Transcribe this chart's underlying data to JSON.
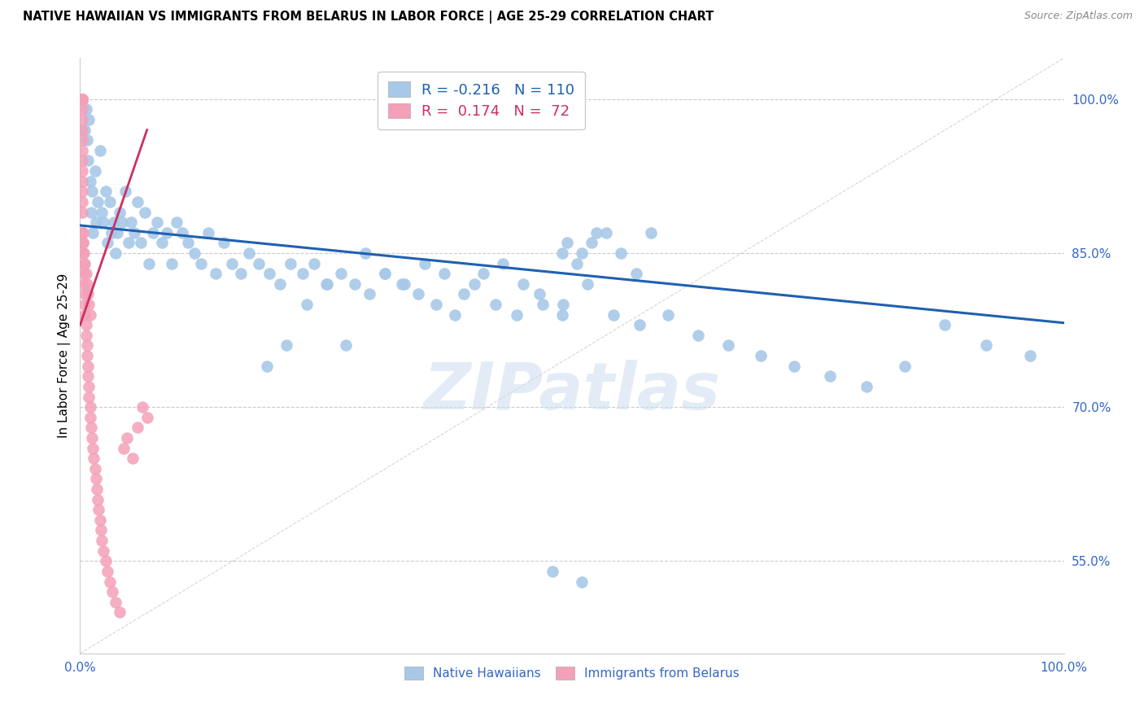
{
  "title": "NATIVE HAWAIIAN VS IMMIGRANTS FROM BELARUS IN LABOR FORCE | AGE 25-29 CORRELATION CHART",
  "source": "Source: ZipAtlas.com",
  "ylabel": "In Labor Force | Age 25-29",
  "xlim": [
    0.0,
    1.0
  ],
  "ylim": [
    0.46,
    1.04
  ],
  "right_yticks": [
    1.0,
    0.85,
    0.7,
    0.55
  ],
  "right_yticklabels": [
    "100.0%",
    "85.0%",
    "70.0%",
    "55.0%"
  ],
  "blue_color": "#a8c8e8",
  "blue_edge_color": "#7aaed4",
  "blue_line_color": "#2060b0",
  "pink_color": "#f4a0b8",
  "pink_edge_color": "#e07090",
  "pink_line_color": "#cc3060",
  "legend_r_blue": "-0.216",
  "legend_n_blue": "110",
  "legend_r_pink": "0.174",
  "legend_n_pink": "72",
  "watermark_text": "ZIPatlas",
  "blue_line_x0": 0.0,
  "blue_line_x1": 1.0,
  "blue_line_y0": 0.877,
  "blue_line_y1": 0.782,
  "pink_line_x0": 0.0,
  "pink_line_x1": 0.068,
  "pink_line_y0": 0.78,
  "pink_line_y1": 0.97,
  "blue_scatter_x": [
    0.005,
    0.006,
    0.007,
    0.008,
    0.009,
    0.01,
    0.011,
    0.012,
    0.013,
    0.015,
    0.016,
    0.018,
    0.02,
    0.022,
    0.024,
    0.026,
    0.028,
    0.03,
    0.032,
    0.034,
    0.036,
    0.038,
    0.04,
    0.043,
    0.046,
    0.049,
    0.052,
    0.055,
    0.058,
    0.062,
    0.066,
    0.07,
    0.074,
    0.078,
    0.083,
    0.088,
    0.093,
    0.098,
    0.104,
    0.11,
    0.116,
    0.123,
    0.13,
    0.138,
    0.146,
    0.154,
    0.163,
    0.172,
    0.182,
    0.192,
    0.203,
    0.214,
    0.226,
    0.238,
    0.251,
    0.265,
    0.279,
    0.294,
    0.31,
    0.327,
    0.344,
    0.362,
    0.381,
    0.401,
    0.422,
    0.444,
    0.467,
    0.491,
    0.516,
    0.542,
    0.569,
    0.598,
    0.628,
    0.659,
    0.692,
    0.726,
    0.762,
    0.799,
    0.838,
    0.879,
    0.921,
    0.966,
    0.19,
    0.21,
    0.23,
    0.25,
    0.27,
    0.29,
    0.31,
    0.33,
    0.35,
    0.37,
    0.39,
    0.41,
    0.43,
    0.45,
    0.47,
    0.49,
    0.51,
    0.49,
    0.505,
    0.52,
    0.535,
    0.55,
    0.565,
    0.58,
    0.48,
    0.495,
    0.51,
    0.525
  ],
  "blue_scatter_y": [
    0.97,
    0.99,
    0.96,
    0.94,
    0.98,
    0.92,
    0.89,
    0.91,
    0.87,
    0.93,
    0.88,
    0.9,
    0.95,
    0.89,
    0.88,
    0.91,
    0.86,
    0.9,
    0.87,
    0.88,
    0.85,
    0.87,
    0.89,
    0.88,
    0.91,
    0.86,
    0.88,
    0.87,
    0.9,
    0.86,
    0.89,
    0.84,
    0.87,
    0.88,
    0.86,
    0.87,
    0.84,
    0.88,
    0.87,
    0.86,
    0.85,
    0.84,
    0.87,
    0.83,
    0.86,
    0.84,
    0.83,
    0.85,
    0.84,
    0.83,
    0.82,
    0.84,
    0.83,
    0.84,
    0.82,
    0.83,
    0.82,
    0.81,
    0.83,
    0.82,
    0.81,
    0.8,
    0.79,
    0.82,
    0.8,
    0.79,
    0.81,
    0.8,
    0.82,
    0.79,
    0.78,
    0.79,
    0.77,
    0.76,
    0.75,
    0.74,
    0.73,
    0.72,
    0.74,
    0.78,
    0.76,
    0.75,
    0.74,
    0.76,
    0.8,
    0.82,
    0.76,
    0.85,
    0.83,
    0.82,
    0.84,
    0.83,
    0.81,
    0.83,
    0.84,
    0.82,
    0.8,
    0.79,
    0.53,
    0.85,
    0.84,
    0.86,
    0.87,
    0.85,
    0.83,
    0.87,
    0.54,
    0.86,
    0.85,
    0.87
  ],
  "pink_scatter_x": [
    0.002,
    0.002,
    0.002,
    0.002,
    0.002,
    0.002,
    0.002,
    0.002,
    0.002,
    0.002,
    0.002,
    0.002,
    0.002,
    0.002,
    0.002,
    0.002,
    0.002,
    0.002,
    0.002,
    0.002,
    0.003,
    0.003,
    0.003,
    0.004,
    0.004,
    0.004,
    0.005,
    0.005,
    0.005,
    0.006,
    0.006,
    0.007,
    0.007,
    0.008,
    0.008,
    0.009,
    0.009,
    0.01,
    0.01,
    0.011,
    0.012,
    0.013,
    0.014,
    0.015,
    0.016,
    0.017,
    0.018,
    0.019,
    0.02,
    0.021,
    0.022,
    0.024,
    0.026,
    0.028,
    0.03,
    0.033,
    0.036,
    0.04,
    0.044,
    0.048,
    0.053,
    0.058,
    0.063,
    0.068,
    0.003,
    0.004,
    0.005,
    0.006,
    0.007,
    0.008,
    0.009,
    0.01
  ],
  "pink_scatter_y": [
    1.0,
    1.0,
    1.0,
    1.0,
    1.0,
    1.0,
    1.0,
    1.0,
    0.99,
    0.98,
    0.97,
    0.96,
    0.95,
    0.94,
    0.93,
    0.92,
    0.91,
    0.9,
    0.89,
    0.87,
    0.87,
    0.86,
    0.85,
    0.84,
    0.83,
    0.82,
    0.81,
    0.8,
    0.79,
    0.78,
    0.77,
    0.76,
    0.75,
    0.74,
    0.73,
    0.72,
    0.71,
    0.7,
    0.69,
    0.68,
    0.67,
    0.66,
    0.65,
    0.64,
    0.63,
    0.62,
    0.61,
    0.6,
    0.59,
    0.58,
    0.57,
    0.56,
    0.55,
    0.54,
    0.53,
    0.52,
    0.51,
    0.5,
    0.66,
    0.67,
    0.65,
    0.68,
    0.7,
    0.69,
    0.86,
    0.85,
    0.84,
    0.83,
    0.82,
    0.81,
    0.8,
    0.79
  ]
}
